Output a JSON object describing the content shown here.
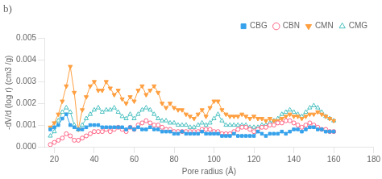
{
  "chart_data": {
    "type": "line",
    "title": "b)",
    "xlabel": "Pore radius (Å)",
    "ylabel": "-dV/d (log r) (cm3 /g)",
    "xlim": [
      15,
      180
    ],
    "xticks": [
      20,
      40,
      60,
      80,
      100,
      120,
      140,
      160,
      180
    ],
    "ylim": [
      0,
      0.005
    ],
    "yticks": [
      {
        "value": 0,
        "label": "0.000"
      },
      0.001,
      0.002,
      0.003,
      0.004,
      0.005
    ],
    "grid": false,
    "legend": "upper right",
    "x": [
      18,
      20,
      22,
      24,
      26,
      28,
      30,
      32,
      34,
      36,
      38,
      40,
      42,
      44,
      46,
      48,
      50,
      52,
      54,
      56,
      58,
      60,
      62,
      64,
      66,
      68,
      70,
      72,
      74,
      76,
      78,
      80,
      82,
      84,
      86,
      88,
      90,
      92,
      94,
      96,
      98,
      100,
      102,
      104,
      106,
      108,
      110,
      112,
      114,
      116,
      118,
      120,
      122,
      124,
      126,
      128,
      130,
      132,
      134,
      136,
      138,
      140,
      142,
      144,
      146,
      148,
      150,
      152,
      154,
      156,
      158,
      160
    ],
    "series": [
      {
        "name": "CBG",
        "marker": "square",
        "values": [
          0.0008,
          0.0009,
          0.001,
          0.0013,
          0.0015,
          0.001,
          0.0009,
          0.0008,
          0.0008,
          0.0009,
          0.001,
          0.001,
          0.001,
          0.0009,
          0.0009,
          0.0009,
          0.0009,
          0.0009,
          0.0009,
          0.0008,
          0.0009,
          0.0008,
          0.0009,
          0.0008,
          0.0008,
          0.0009,
          0.0008,
          0.0008,
          0.0007,
          0.0007,
          0.0007,
          0.0006,
          0.0006,
          0.0007,
          0.0006,
          0.0006,
          0.0006,
          0.0006,
          0.0007,
          0.0006,
          0.0006,
          0.0006,
          0.0006,
          0.0005,
          0.0005,
          0.0005,
          0.0006,
          0.0005,
          0.0005,
          0.0005,
          0.0005,
          0.0005,
          0.0007,
          0.0006,
          0.0005,
          0.0006,
          0.0006,
          0.0006,
          0.0007,
          0.0006,
          0.0007,
          0.0008,
          0.0008,
          0.0007,
          0.0008,
          0.0009,
          0.0009,
          0.0008,
          0.0008,
          0.0007,
          0.0007,
          0.0007
        ]
      },
      {
        "name": "CBN",
        "marker": "circle-open",
        "values": [
          0.0001,
          0.0002,
          0.0003,
          0.0004,
          0.0006,
          0.0005,
          0.0003,
          0.0003,
          0.0004,
          0.0005,
          0.0006,
          0.0007,
          0.0007,
          0.0007,
          0.0008,
          0.0007,
          0.0008,
          0.0009,
          0.0008,
          0.0007,
          0.0009,
          0.0008,
          0.001,
          0.0011,
          0.0012,
          0.0011,
          0.001,
          0.001,
          0.0009,
          0.0008,
          0.0008,
          0.0007,
          0.0007,
          0.0007,
          0.0007,
          0.0007,
          0.0007,
          0.0007,
          0.0008,
          0.0008,
          0.0008,
          0.0007,
          0.0007,
          0.0006,
          0.0006,
          0.0006,
          0.0007,
          0.0008,
          0.0009,
          0.0009,
          0.0008,
          0.0007,
          0.0008,
          0.0009,
          0.0009,
          0.001,
          0.001,
          0.0011,
          0.0011,
          0.0012,
          0.0012,
          0.0011,
          0.001,
          0.0009,
          0.001,
          0.0011,
          0.001,
          0.0009,
          0.0008,
          0.0008,
          0.0007,
          0.0007
        ]
      },
      {
        "name": "CMN",
        "marker": "triangle-down",
        "values": [
          0.0009,
          0.0011,
          0.0015,
          0.0021,
          0.0028,
          0.0037,
          0.0025,
          0.0008,
          0.0017,
          0.0023,
          0.0028,
          0.003,
          0.0026,
          0.0026,
          0.003,
          0.0027,
          0.0024,
          0.0026,
          0.0022,
          0.002,
          0.0023,
          0.0021,
          0.0026,
          0.0028,
          0.0024,
          0.0026,
          0.0028,
          0.0025,
          0.002,
          0.0018,
          0.002,
          0.0018,
          0.0017,
          0.0017,
          0.0015,
          0.0014,
          0.0013,
          0.0015,
          0.0017,
          0.0014,
          0.0018,
          0.0021,
          0.0021,
          0.0017,
          0.0015,
          0.0014,
          0.0014,
          0.0014,
          0.0015,
          0.0014,
          0.0013,
          0.0014,
          0.0013,
          0.0013,
          0.0012,
          0.0013,
          0.0012,
          0.0012,
          0.0013,
          0.0014,
          0.0015,
          0.0014,
          0.0014,
          0.0013,
          0.0014,
          0.0015,
          0.0015,
          0.0016,
          0.0015,
          0.0014,
          0.0013,
          0.0012
        ]
      },
      {
        "name": "CMG",
        "marker": "triangle-up-open",
        "values": [
          0.0005,
          0.0007,
          0.0012,
          0.0016,
          0.0018,
          0.0016,
          0.001,
          0.0008,
          0.001,
          0.0013,
          0.0015,
          0.0017,
          0.0018,
          0.0016,
          0.0017,
          0.0017,
          0.0018,
          0.0016,
          0.0014,
          0.0013,
          0.0015,
          0.0013,
          0.0015,
          0.0017,
          0.0018,
          0.0017,
          0.0015,
          0.0013,
          0.0012,
          0.0012,
          0.0011,
          0.0011,
          0.001,
          0.001,
          0.001,
          0.0009,
          0.0009,
          0.001,
          0.0011,
          0.001,
          0.0011,
          0.0013,
          0.0015,
          0.0012,
          0.001,
          0.001,
          0.001,
          0.001,
          0.001,
          0.001,
          0.0009,
          0.0009,
          0.0009,
          0.001,
          0.001,
          0.0011,
          0.0012,
          0.0013,
          0.0015,
          0.0016,
          0.0017,
          0.0016,
          0.0015,
          0.0014,
          0.0016,
          0.0018,
          0.0019,
          0.0018,
          0.0016,
          0.0014,
          0.0013,
          0.0012
        ]
      }
    ]
  }
}
